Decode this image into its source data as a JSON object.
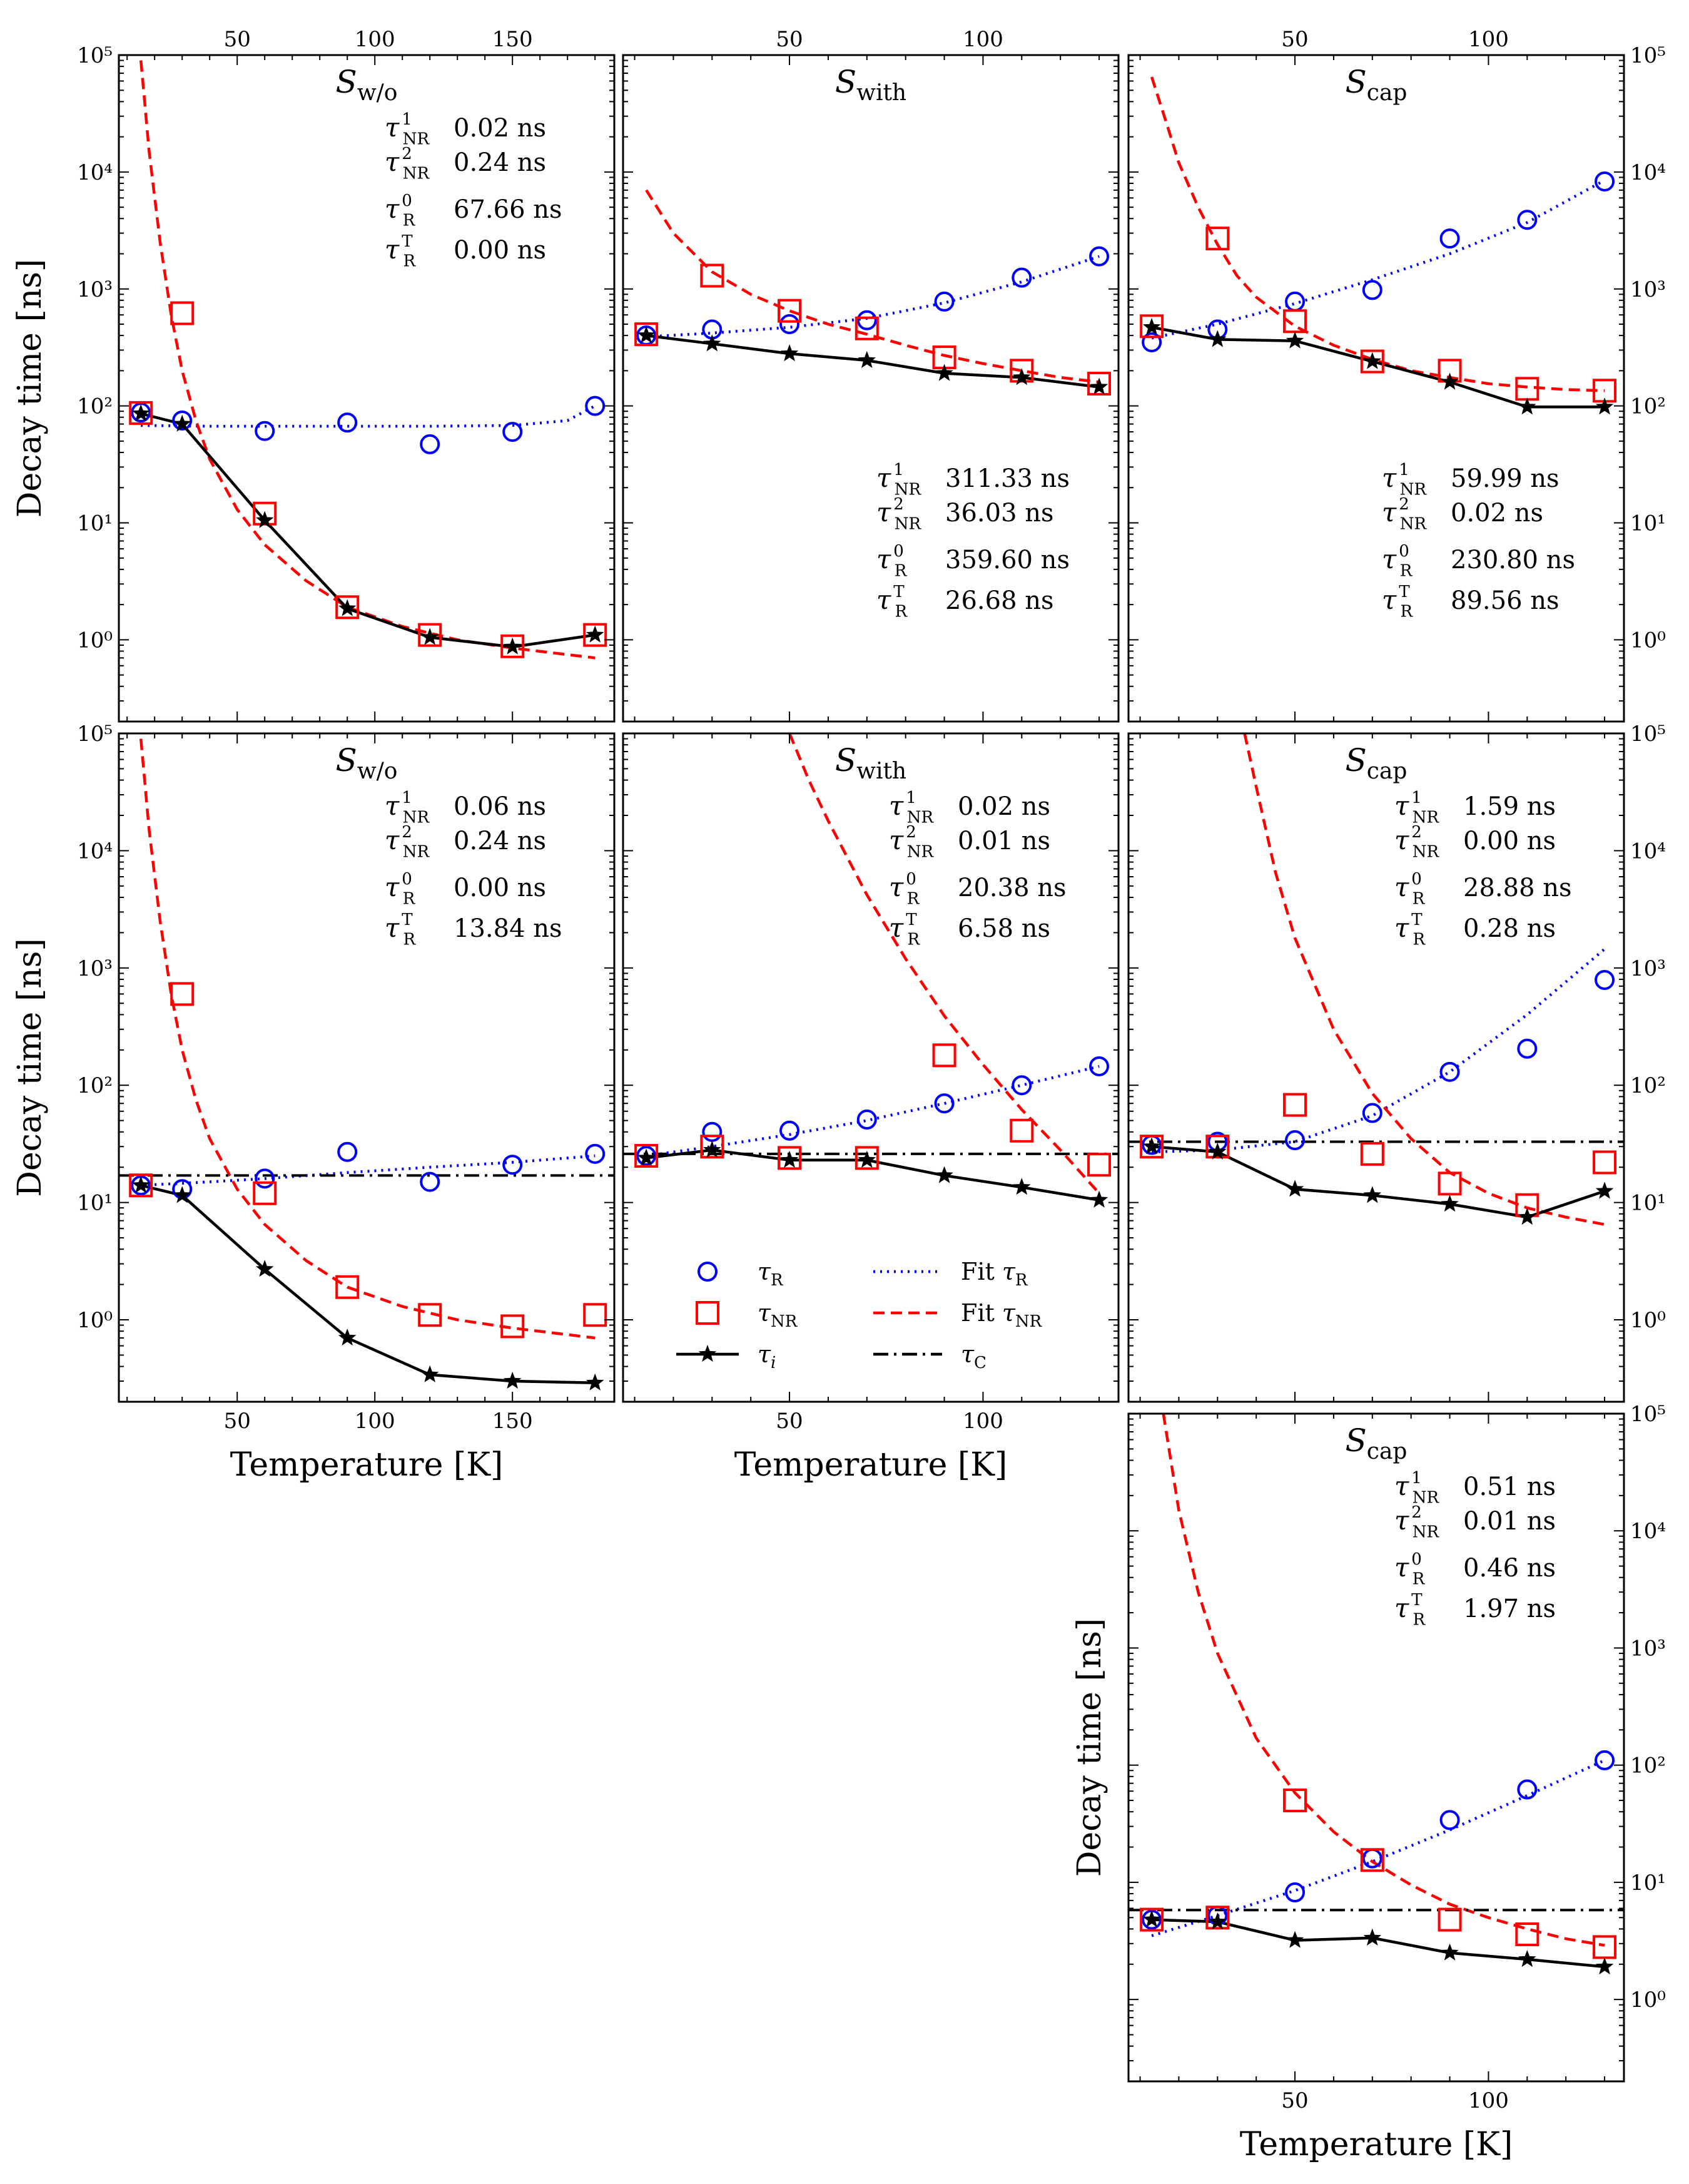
{
  "figure": {
    "y_axis_label": "Decay time [ns]",
    "x_axis_label": "Temperature [K]",
    "y_tick_labels": [
      "10⁰",
      "10¹",
      "10²",
      "10³",
      "10⁴",
      "10⁵"
    ],
    "legend": {
      "entries": [
        {
          "label": "τR",
          "kind": "circle",
          "color": "#0000ff"
        },
        {
          "label": "τNR",
          "kind": "square",
          "color": "#ff0000"
        },
        {
          "label": "τi",
          "kind": "star-line",
          "color": "#000000"
        },
        {
          "label": "Fit τR",
          "kind": "dotted",
          "color": "#0000ff"
        },
        {
          "label": "Fit τNR",
          "kind": "dashed",
          "color": "#ff0000"
        },
        {
          "label": "τC",
          "kind": "dashdot",
          "color": "#000000"
        }
      ]
    }
  },
  "chart_data": [
    {
      "type": "scatter",
      "title": "Sw/o",
      "xlim": [
        7,
        187
      ],
      "ylim": [
        0.2,
        100000
      ],
      "yscale": "log",
      "x_ticks": [
        50,
        100,
        150
      ],
      "x_tick_position": "top",
      "show_ylabel": true,
      "y_ticks_side": "left",
      "show_xlabel": false,
      "params": [
        {
          "label": "τNR1",
          "value": "0.02 ns"
        },
        {
          "label": "τNR2",
          "value": "0.24 ns"
        },
        {
          "label": "τR0",
          "value": "67.66 ns"
        },
        {
          "label": "τRT",
          "value": "0.00 ns"
        }
      ],
      "params_position": "top",
      "x": [
        15,
        30,
        60,
        90,
        120,
        150,
        180
      ],
      "series": [
        {
          "name": "τR",
          "values": [
            88,
            75,
            61,
            72,
            47,
            60,
            100
          ]
        },
        {
          "name": "τNR",
          "values": [
            87,
            620,
            12,
            1.9,
            1.1,
            0.88,
            1.1
          ]
        },
        {
          "name": "τi",
          "values": [
            86,
            70,
            10.5,
            1.85,
            1.05,
            0.87,
            1.1
          ]
        }
      ],
      "fit_R": {
        "x": [
          15,
          40,
          60,
          90,
          120,
          150,
          170,
          180
        ],
        "y": [
          68,
          67,
          67,
          67,
          67,
          68,
          75,
          100
        ]
      },
      "fit_NR": {
        "x": [
          15,
          18,
          22,
          26,
          30,
          35,
          40,
          50,
          60,
          75,
          90,
          110,
          130,
          150,
          180
        ],
        "y": [
          90000,
          15000,
          2500,
          600,
          200,
          75,
          35,
          13,
          6.5,
          3.2,
          1.9,
          1.3,
          1.0,
          0.85,
          0.7
        ]
      },
      "tau_C": null
    },
    {
      "type": "scatter",
      "title": "Swith",
      "xlim": [
        7,
        135
      ],
      "ylim": [
        0.2,
        100000
      ],
      "yscale": "log",
      "x_ticks": [
        50,
        100
      ],
      "x_tick_position": "top",
      "show_ylabel": false,
      "y_ticks_side": "none",
      "show_xlabel": false,
      "params": [
        {
          "label": "τNR1",
          "value": "311.33 ns"
        },
        {
          "label": "τNR2",
          "value": "36.03 ns"
        },
        {
          "label": "τR0",
          "value": "359.60 ns"
        },
        {
          "label": "τRT",
          "value": "26.68 ns"
        }
      ],
      "params_position": "bottom",
      "x": [
        13,
        30,
        50,
        70,
        90,
        110,
        130
      ],
      "series": [
        {
          "name": "τR",
          "values": [
            400,
            450,
            500,
            540,
            780,
            1250,
            1900
          ]
        },
        {
          "name": "τNR",
          "values": [
            410,
            1300,
            650,
            460,
            260,
            200,
            155
          ]
        },
        {
          "name": "τi",
          "values": [
            400,
            340,
            280,
            245,
            190,
            175,
            145
          ]
        }
      ],
      "fit_R": {
        "x": [
          13,
          30,
          50,
          70,
          90,
          110,
          130
        ],
        "y": [
          390,
          420,
          470,
          560,
          760,
          1150,
          1900
        ]
      },
      "fit_NR": {
        "x": [
          13,
          20,
          30,
          40,
          50,
          60,
          70,
          80,
          90,
          100,
          110,
          120,
          130
        ],
        "y": [
          7000,
          3000,
          1400,
          900,
          650,
          500,
          410,
          330,
          270,
          230,
          200,
          175,
          160
        ]
      },
      "tau_C": null
    },
    {
      "type": "scatter",
      "title": "Scap",
      "xlim": [
        7,
        135
      ],
      "ylim": [
        0.2,
        100000
      ],
      "yscale": "log",
      "x_ticks": [
        50,
        100
      ],
      "x_tick_position": "top",
      "show_ylabel": false,
      "y_ticks_side": "right",
      "show_xlabel": false,
      "params": [
        {
          "label": "τNR1",
          "value": "59.99 ns"
        },
        {
          "label": "τNR2",
          "value": "0.02 ns"
        },
        {
          "label": "τR0",
          "value": "230.80 ns"
        },
        {
          "label": "τRT",
          "value": "89.56 ns"
        }
      ],
      "params_position": "bottom",
      "x": [
        13,
        30,
        50,
        70,
        90,
        110,
        130
      ],
      "series": [
        {
          "name": "τR",
          "values": [
            350,
            450,
            780,
            980,
            2700,
            3900,
            8300
          ]
        },
        {
          "name": "τNR",
          "values": [
            480,
            2700,
            530,
            240,
            200,
            140,
            135
          ]
        },
        {
          "name": "τi",
          "values": [
            470,
            370,
            360,
            240,
            160,
            98,
            98
          ]
        }
      ],
      "fit_R": {
        "x": [
          13,
          30,
          50,
          70,
          90,
          110,
          130
        ],
        "y": [
          380,
          500,
          750,
          1200,
          2000,
          3700,
          8500
        ]
      },
      "fit_NR": {
        "x": [
          13,
          17,
          20,
          25,
          30,
          35,
          40,
          50,
          60,
          70,
          80,
          90,
          100,
          110,
          120,
          130
        ],
        "y": [
          65000,
          25000,
          12000,
          5000,
          2400,
          1300,
          850,
          480,
          330,
          250,
          200,
          175,
          155,
          145,
          138,
          135
        ]
      },
      "tau_C": null
    },
    {
      "type": "scatter",
      "title": "Sw/o",
      "xlim": [
        7,
        187
      ],
      "ylim": [
        0.2,
        100000
      ],
      "yscale": "log",
      "x_ticks": [
        50,
        100,
        150
      ],
      "x_tick_position": "bottom",
      "show_ylabel": true,
      "y_ticks_side": "left",
      "show_xlabel": true,
      "params": [
        {
          "label": "τNR1",
          "value": "0.06 ns"
        },
        {
          "label": "τNR2",
          "value": "0.24 ns"
        },
        {
          "label": "τR0",
          "value": "0.00 ns"
        },
        {
          "label": "τRT",
          "value": "13.84 ns"
        }
      ],
      "params_position": "top",
      "x": [
        15,
        30,
        60,
        90,
        120,
        150,
        180
      ],
      "series": [
        {
          "name": "τR",
          "values": [
            14,
            13,
            16,
            27,
            15,
            21,
            26
          ]
        },
        {
          "name": "τNR",
          "values": [
            14,
            600,
            12,
            1.9,
            1.1,
            0.88,
            1.1
          ]
        },
        {
          "name": "τi",
          "values": [
            14,
            11.5,
            2.7,
            0.7,
            0.34,
            0.3,
            0.29
          ]
        }
      ],
      "fit_R": {
        "x": [
          15,
          40,
          60,
          90,
          120,
          150,
          180
        ],
        "y": [
          14,
          15,
          16,
          18,
          20,
          22,
          25
        ]
      },
      "fit_NR": {
        "x": [
          15,
          18,
          22,
          26,
          30,
          35,
          40,
          50,
          60,
          75,
          90,
          110,
          130,
          150,
          180
        ],
        "y": [
          90000,
          15000,
          2500,
          600,
          200,
          75,
          35,
          13,
          6.5,
          3.2,
          1.9,
          1.3,
          1.0,
          0.85,
          0.7
        ]
      },
      "tau_C": 17
    },
    {
      "type": "scatter",
      "title": "Swith",
      "xlim": [
        7,
        135
      ],
      "ylim": [
        0.2,
        100000
      ],
      "yscale": "log",
      "x_ticks": [
        50,
        100
      ],
      "x_tick_position": "bottom",
      "show_ylabel": false,
      "y_ticks_side": "none",
      "show_xlabel": true,
      "params": [
        {
          "label": "τNR1",
          "value": "0.02 ns"
        },
        {
          "label": "τNR2",
          "value": "0.01 ns"
        },
        {
          "label": "τR0",
          "value": "20.38 ns"
        },
        {
          "label": "τRT",
          "value": "6.58 ns"
        }
      ],
      "params_position": "top",
      "x": [
        13,
        30,
        50,
        70,
        90,
        110,
        130
      ],
      "series": [
        {
          "name": "τR",
          "values": [
            25,
            40,
            41,
            51,
            70,
            100,
            145
          ]
        },
        {
          "name": "τNR",
          "values": [
            25,
            30,
            24,
            24,
            180,
            41,
            21
          ]
        },
        {
          "name": "τi",
          "values": [
            24,
            28,
            23,
            23,
            17,
            13.5,
            10.5
          ]
        }
      ],
      "fit_R": {
        "x": [
          13,
          30,
          50,
          70,
          90,
          110,
          130
        ],
        "y": [
          25,
          30,
          38,
          50,
          70,
          100,
          145
        ]
      },
      "fit_NR": {
        "x": [
          50,
          55,
          60,
          70,
          80,
          90,
          100,
          110,
          120,
          130
        ],
        "y": [
          100000,
          40000,
          18000,
          4200,
          1200,
          390,
          150,
          62,
          28,
          12
        ]
      },
      "tau_C": 26
    },
    {
      "type": "scatter",
      "title": "Scap",
      "xlim": [
        7,
        135
      ],
      "ylim": [
        0.2,
        100000
      ],
      "yscale": "log",
      "x_ticks": [
        50,
        100
      ],
      "x_tick_position": "none",
      "show_ylabel": false,
      "y_ticks_side": "right",
      "show_xlabel": false,
      "params": [
        {
          "label": "τNR1",
          "value": "1.59 ns"
        },
        {
          "label": "τNR2",
          "value": "0.00 ns"
        },
        {
          "label": "τR0",
          "value": "28.88 ns"
        },
        {
          "label": "τRT",
          "value": "0.28 ns"
        }
      ],
      "params_position": "top",
      "x": [
        13,
        30,
        50,
        70,
        90,
        110,
        130
      ],
      "series": [
        {
          "name": "τR",
          "values": [
            31,
            33,
            34,
            58,
            130,
            205,
            790
          ]
        },
        {
          "name": "τNR",
          "values": [
            30,
            30,
            68,
            26,
            14.5,
            9.5,
            22
          ]
        },
        {
          "name": "τi",
          "values": [
            30,
            27,
            13,
            11.5,
            9.7,
            7.5,
            12.5
          ]
        }
      ],
      "fit_R": {
        "x": [
          13,
          30,
          50,
          70,
          90,
          110,
          130
        ],
        "y": [
          27,
          28,
          33,
          55,
          130,
          400,
          1450
        ]
      },
      "fit_NR": {
        "x": [
          37,
          40,
          45,
          50,
          60,
          70,
          80,
          90,
          100,
          110,
          120,
          130
        ],
        "y": [
          100000,
          35000,
          6500,
          1800,
          300,
          85,
          35,
          18,
          12,
          9,
          7.5,
          6.5
        ]
      },
      "tau_C": 33
    },
    {
      "type": "scatter",
      "title": "Scap",
      "xlim": [
        7,
        135
      ],
      "ylim": [
        0.2,
        100000
      ],
      "yscale": "log",
      "x_ticks": [
        50,
        100
      ],
      "x_tick_position": "bottom",
      "show_ylabel": true,
      "y_ticks_side": "right",
      "show_xlabel": true,
      "params": [
        {
          "label": "τNR1",
          "value": "0.51 ns"
        },
        {
          "label": "τNR2",
          "value": "0.01 ns"
        },
        {
          "label": "τR0",
          "value": "0.46 ns"
        },
        {
          "label": "τRT",
          "value": "1.97 ns"
        }
      ],
      "params_position": "top",
      "x": [
        13,
        30,
        50,
        70,
        90,
        110,
        130
      ],
      "series": [
        {
          "name": "τR",
          "values": [
            4.8,
            5.2,
            8.2,
            16,
            34,
            62,
            110
          ]
        },
        {
          "name": "τNR",
          "values": [
            4.8,
            5.0,
            50,
            15.5,
            4.8,
            3.6,
            2.8
          ]
        },
        {
          "name": "τi",
          "values": [
            4.8,
            4.6,
            3.2,
            3.35,
            2.5,
            2.2,
            1.9
          ]
        }
      ],
      "fit_R": {
        "x": [
          13,
          30,
          50,
          70,
          90,
          110,
          130
        ],
        "y": [
          3.5,
          5.2,
          8.5,
          15,
          28,
          55,
          110
        ]
      },
      "fit_NR": {
        "x": [
          16,
          20,
          25,
          30,
          40,
          50,
          60,
          70,
          80,
          90,
          100,
          110,
          120,
          130
        ],
        "y": [
          100000,
          15000,
          3000,
          900,
          170,
          58,
          27,
          15,
          9.5,
          6.5,
          5.0,
          4.0,
          3.3,
          2.9
        ]
      },
      "tau_C": 5.8
    }
  ]
}
